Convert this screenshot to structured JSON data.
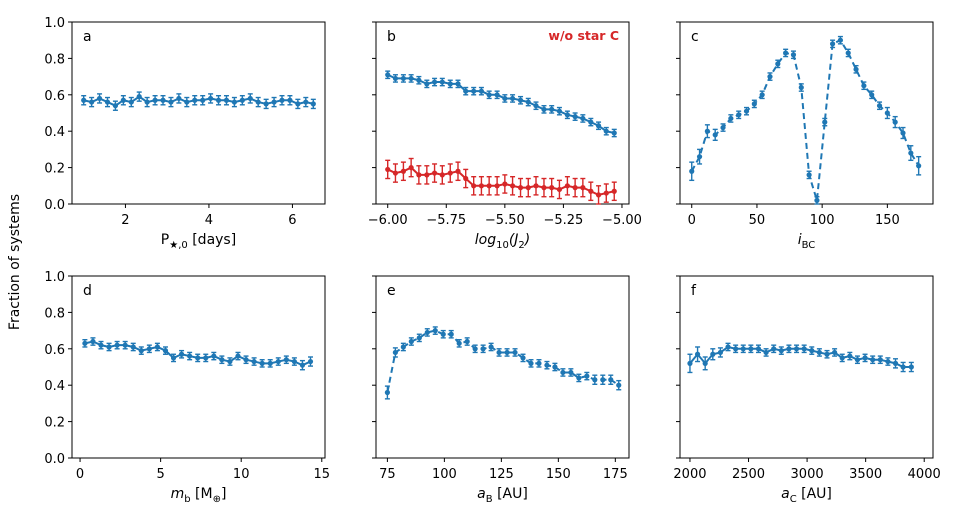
{
  "figure": {
    "ylabel_shared": "Fraction of systems",
    "colors": {
      "blue": "#1f77b4",
      "red": "#d62728",
      "axis": "#000000"
    }
  },
  "chart_data": [
    {
      "panel": "a",
      "type": "line",
      "xlabel_main": "P",
      "xlabel_sub": "★,0",
      "xlabel_suffix": " [days]",
      "xlim": [
        0.72,
        6.78
      ],
      "ylim": [
        0,
        1
      ],
      "xticks": [
        2,
        4,
        6
      ],
      "xtick_labels": [
        "2",
        "4",
        "6"
      ],
      "yticks": [
        0,
        0.2,
        0.4,
        0.6,
        0.8,
        1.0
      ],
      "ytick_labels": [
        "0.0",
        "0.2",
        "0.4",
        "0.6",
        "0.8",
        "1.0"
      ],
      "show_yticklabels": true,
      "series": [
        {
          "color": "#1f77b4",
          "style": "solid",
          "x": [
            1.0,
            1.19,
            1.38,
            1.57,
            1.76,
            1.95,
            2.14,
            2.33,
            2.52,
            2.71,
            2.9,
            3.09,
            3.28,
            3.47,
            3.66,
            3.85,
            4.04,
            4.23,
            4.42,
            4.61,
            4.8,
            4.99,
            5.18,
            5.37,
            5.56,
            5.75,
            5.94,
            6.13,
            6.32,
            6.5
          ],
          "y": [
            0.57,
            0.56,
            0.58,
            0.56,
            0.54,
            0.57,
            0.56,
            0.59,
            0.56,
            0.57,
            0.57,
            0.56,
            0.58,
            0.56,
            0.57,
            0.57,
            0.58,
            0.57,
            0.57,
            0.56,
            0.57,
            0.58,
            0.56,
            0.55,
            0.56,
            0.57,
            0.57,
            0.55,
            0.56,
            0.55
          ],
          "err": [
            0.025,
            0.025,
            0.025,
            0.025,
            0.025,
            0.025,
            0.025,
            0.025,
            0.025,
            0.025,
            0.025,
            0.025,
            0.025,
            0.025,
            0.025,
            0.025,
            0.025,
            0.025,
            0.025,
            0.025,
            0.025,
            0.025,
            0.025,
            0.025,
            0.025,
            0.025,
            0.025,
            0.025,
            0.025,
            0.025
          ]
        }
      ]
    },
    {
      "panel": "b",
      "type": "line",
      "xlabel_main": "log",
      "xlabel_sub": "10",
      "xlabel_suffix": "(J",
      "xlabel_sub2": "2",
      "xlabel_end": ")",
      "annotation": "w/o star C",
      "xlim": [
        -6.05,
        -4.97
      ],
      "ylim": [
        0,
        1
      ],
      "xticks": [
        -6.0,
        -5.75,
        -5.5,
        -5.25,
        -5.0
      ],
      "xtick_labels": [
        "−6.00",
        "−5.75",
        "−5.50",
        "−5.25",
        "−5.00"
      ],
      "yticks": [
        0,
        0.2,
        0.4,
        0.6,
        0.8,
        1.0
      ],
      "show_yticklabels": false,
      "series": [
        {
          "color": "#1f77b4",
          "style": "solid",
          "x": [
            -6.0,
            -5.967,
            -5.933,
            -5.9,
            -5.867,
            -5.833,
            -5.8,
            -5.767,
            -5.733,
            -5.7,
            -5.667,
            -5.633,
            -5.6,
            -5.567,
            -5.533,
            -5.5,
            -5.467,
            -5.433,
            -5.4,
            -5.367,
            -5.333,
            -5.3,
            -5.267,
            -5.233,
            -5.2,
            -5.167,
            -5.133,
            -5.1,
            -5.067,
            -5.033
          ],
          "y": [
            0.71,
            0.69,
            0.69,
            0.69,
            0.68,
            0.66,
            0.67,
            0.67,
            0.66,
            0.66,
            0.62,
            0.62,
            0.62,
            0.6,
            0.6,
            0.58,
            0.58,
            0.57,
            0.56,
            0.54,
            0.52,
            0.52,
            0.51,
            0.49,
            0.48,
            0.47,
            0.45,
            0.43,
            0.4,
            0.39
          ],
          "err": [
            0.02,
            0.02,
            0.02,
            0.02,
            0.02,
            0.02,
            0.02,
            0.02,
            0.02,
            0.02,
            0.02,
            0.02,
            0.02,
            0.02,
            0.02,
            0.02,
            0.02,
            0.02,
            0.02,
            0.02,
            0.02,
            0.02,
            0.02,
            0.02,
            0.02,
            0.02,
            0.02,
            0.02,
            0.02,
            0.02
          ]
        },
        {
          "color": "#d62728",
          "style": "solid",
          "x": [
            -6.0,
            -5.967,
            -5.933,
            -5.9,
            -5.867,
            -5.833,
            -5.8,
            -5.767,
            -5.733,
            -5.7,
            -5.667,
            -5.633,
            -5.6,
            -5.567,
            -5.533,
            -5.5,
            -5.467,
            -5.433,
            -5.4,
            -5.367,
            -5.333,
            -5.3,
            -5.267,
            -5.233,
            -5.2,
            -5.167,
            -5.133,
            -5.1,
            -5.067,
            -5.033
          ],
          "y": [
            0.19,
            0.17,
            0.18,
            0.2,
            0.16,
            0.16,
            0.17,
            0.16,
            0.17,
            0.18,
            0.14,
            0.1,
            0.1,
            0.1,
            0.1,
            0.11,
            0.1,
            0.09,
            0.09,
            0.1,
            0.09,
            0.09,
            0.08,
            0.1,
            0.09,
            0.09,
            0.07,
            0.05,
            0.06,
            0.07
          ],
          "err": [
            0.05,
            0.05,
            0.05,
            0.05,
            0.05,
            0.05,
            0.05,
            0.05,
            0.05,
            0.05,
            0.05,
            0.05,
            0.05,
            0.05,
            0.05,
            0.05,
            0.05,
            0.05,
            0.05,
            0.05,
            0.05,
            0.05,
            0.05,
            0.05,
            0.05,
            0.05,
            0.05,
            0.05,
            0.05,
            0.05
          ]
        }
      ]
    },
    {
      "panel": "c",
      "type": "line",
      "xlabel_main": "i",
      "xlabel_sub": "BC",
      "xlim": [
        -9,
        185
      ],
      "ylim": [
        0,
        1
      ],
      "xticks": [
        0,
        50,
        100,
        150
      ],
      "xtick_labels": [
        "0",
        "50",
        "100",
        "150"
      ],
      "yticks": [
        0,
        0.2,
        0.4,
        0.6,
        0.8,
        1.0
      ],
      "show_yticklabels": false,
      "series": [
        {
          "color": "#1f77b4",
          "style": "dashed",
          "x": [
            0,
            6,
            12,
            18,
            24,
            30,
            36,
            42,
            48,
            54,
            60,
            66,
            72,
            78,
            84,
            90,
            96,
            102,
            108,
            114,
            120,
            126,
            132,
            138,
            144,
            150,
            156,
            162,
            168,
            174
          ],
          "y": [
            0.18,
            0.26,
            0.4,
            0.38,
            0.42,
            0.47,
            0.49,
            0.51,
            0.55,
            0.6,
            0.7,
            0.77,
            0.83,
            0.82,
            0.64,
            0.16,
            0.02,
            0.45,
            0.88,
            0.9,
            0.83,
            0.74,
            0.65,
            0.6,
            0.54,
            0.5,
            0.45,
            0.39,
            0.28,
            0.21
          ],
          "err": [
            0.05,
            0.04,
            0.035,
            0.03,
            0.02,
            0.02,
            0.02,
            0.02,
            0.02,
            0.02,
            0.02,
            0.02,
            0.02,
            0.02,
            0.02,
            0.02,
            0.02,
            0.02,
            0.02,
            0.02,
            0.02,
            0.02,
            0.02,
            0.02,
            0.02,
            0.03,
            0.03,
            0.03,
            0.04,
            0.05
          ]
        }
      ]
    },
    {
      "panel": "d",
      "type": "line",
      "xlabel_main": "m",
      "xlabel_sub": "b",
      "xlabel_suffix": " [M",
      "xlabel_sub2": "⊕",
      "xlabel_end": "]",
      "xlim": [
        -0.5,
        15.2
      ],
      "ylim": [
        0,
        1
      ],
      "xticks": [
        0,
        5,
        10,
        15
      ],
      "xtick_labels": [
        "0",
        "5",
        "10",
        "15"
      ],
      "yticks": [
        0,
        0.2,
        0.4,
        0.6,
        0.8,
        1.0
      ],
      "ytick_labels": [
        "0.0",
        "0.2",
        "0.4",
        "0.6",
        "0.8",
        "1.0"
      ],
      "show_yticklabels": true,
      "series": [
        {
          "color": "#1f77b4",
          "style": "solid",
          "x": [
            0.3,
            0.8,
            1.3,
            1.8,
            2.3,
            2.8,
            3.3,
            3.8,
            4.3,
            4.8,
            5.3,
            5.8,
            6.3,
            6.8,
            7.3,
            7.8,
            8.3,
            8.8,
            9.3,
            9.8,
            10.3,
            10.8,
            11.3,
            11.8,
            12.3,
            12.8,
            13.3,
            13.8,
            14.3
          ],
          "y": [
            0.63,
            0.64,
            0.62,
            0.61,
            0.62,
            0.62,
            0.61,
            0.59,
            0.6,
            0.61,
            0.59,
            0.55,
            0.57,
            0.56,
            0.55,
            0.55,
            0.56,
            0.54,
            0.53,
            0.56,
            0.54,
            0.53,
            0.52,
            0.52,
            0.53,
            0.54,
            0.53,
            0.51,
            0.53
          ],
          "err": [
            0.02,
            0.02,
            0.02,
            0.02,
            0.02,
            0.02,
            0.02,
            0.02,
            0.02,
            0.02,
            0.02,
            0.02,
            0.02,
            0.02,
            0.02,
            0.02,
            0.02,
            0.02,
            0.02,
            0.02,
            0.02,
            0.02,
            0.02,
            0.02,
            0.02,
            0.02,
            0.02,
            0.025,
            0.025
          ]
        }
      ]
    },
    {
      "panel": "e",
      "type": "line",
      "xlabel_main": "a",
      "xlabel_sub": "B",
      "xlabel_suffix": " [AU]",
      "xlim": [
        70,
        181
      ],
      "ylim": [
        0,
        1
      ],
      "xticks": [
        75,
        100,
        125,
        150,
        175
      ],
      "xtick_labels": [
        "75",
        "100",
        "125",
        "150",
        "175"
      ],
      "yticks": [
        0,
        0.2,
        0.4,
        0.6,
        0.8,
        1.0
      ],
      "show_yticklabels": false,
      "series": [
        {
          "color": "#1f77b4",
          "style": "dashed",
          "x": [
            75,
            78.5,
            82,
            85.5,
            89,
            92.5,
            96,
            99.5,
            103,
            106.5,
            110,
            113.5,
            117,
            120.5,
            124,
            127.5,
            131,
            134.5,
            138,
            141.5,
            145,
            148.5,
            152,
            155.5,
            159,
            162.5,
            166,
            169.5,
            173,
            176.5
          ],
          "y": [
            0.36,
            0.58,
            0.61,
            0.64,
            0.66,
            0.69,
            0.7,
            0.68,
            0.68,
            0.63,
            0.64,
            0.6,
            0.6,
            0.61,
            0.58,
            0.58,
            0.58,
            0.55,
            0.52,
            0.52,
            0.51,
            0.5,
            0.47,
            0.47,
            0.44,
            0.45,
            0.43,
            0.43,
            0.43,
            0.4
          ],
          "err": [
            0.035,
            0.025,
            0.02,
            0.02,
            0.02,
            0.02,
            0.02,
            0.02,
            0.02,
            0.02,
            0.02,
            0.02,
            0.02,
            0.02,
            0.02,
            0.02,
            0.02,
            0.02,
            0.02,
            0.02,
            0.02,
            0.02,
            0.02,
            0.02,
            0.02,
            0.02,
            0.025,
            0.025,
            0.025,
            0.025
          ]
        }
      ]
    },
    {
      "panel": "f",
      "type": "line",
      "xlabel_main": "a",
      "xlabel_sub": "C",
      "xlabel_suffix": " [AU]",
      "xlim": [
        1915,
        4075
      ],
      "ylim": [
        0,
        1
      ],
      "xticks": [
        2000,
        2500,
        3000,
        3500,
        4000
      ],
      "xtick_labels": [
        "2000",
        "2500",
        "3000",
        "3500",
        "4000"
      ],
      "yticks": [
        0,
        0.2,
        0.4,
        0.6,
        0.8,
        1.0
      ],
      "show_yticklabels": false,
      "series": [
        {
          "color": "#1f77b4",
          "style": "solid",
          "x": [
            2000,
            2065,
            2130,
            2195,
            2260,
            2325,
            2390,
            2455,
            2520,
            2585,
            2650,
            2715,
            2780,
            2845,
            2910,
            2975,
            3040,
            3105,
            3170,
            3235,
            3300,
            3365,
            3430,
            3495,
            3560,
            3625,
            3690,
            3755,
            3820,
            3890
          ],
          "y": [
            0.52,
            0.57,
            0.52,
            0.57,
            0.58,
            0.61,
            0.6,
            0.6,
            0.6,
            0.6,
            0.58,
            0.6,
            0.59,
            0.6,
            0.6,
            0.6,
            0.59,
            0.58,
            0.57,
            0.58,
            0.55,
            0.56,
            0.54,
            0.55,
            0.54,
            0.54,
            0.53,
            0.52,
            0.5,
            0.5
          ],
          "err": [
            0.05,
            0.04,
            0.035,
            0.03,
            0.025,
            0.02,
            0.02,
            0.02,
            0.02,
            0.02,
            0.02,
            0.02,
            0.02,
            0.02,
            0.02,
            0.02,
            0.02,
            0.02,
            0.02,
            0.02,
            0.02,
            0.02,
            0.02,
            0.02,
            0.02,
            0.02,
            0.02,
            0.025,
            0.025,
            0.025
          ]
        }
      ]
    }
  ]
}
